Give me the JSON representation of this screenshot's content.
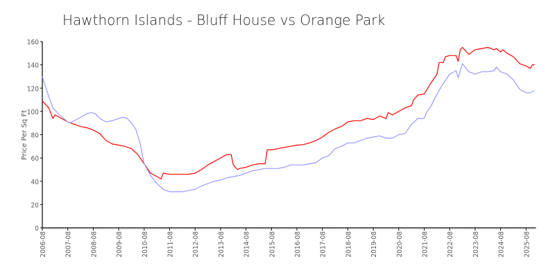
{
  "chart_data": {
    "type": "line",
    "title": "Hawthorn Islands - Bluff House vs Orange Park",
    "xlabel": "",
    "ylabel": "Price Per Sq Ft",
    "ylim": [
      0,
      160
    ],
    "yticks": [
      0,
      20,
      40,
      60,
      80,
      100,
      120,
      140,
      160
    ],
    "xlim": [
      "2006-08",
      "2025-12"
    ],
    "xticks": [
      "2006-08",
      "2007-08",
      "2008-08",
      "2009-08",
      "2010-08",
      "2011-08",
      "2012-08",
      "2013-08",
      "2014-08",
      "2015-08",
      "2016-08",
      "2017-08",
      "2018-08",
      "2019-08",
      "2020-08",
      "2021-08",
      "2022-08",
      "2023-08",
      "2024-08",
      "2025-08"
    ],
    "grid": false,
    "legend": "none",
    "series": [
      {
        "color": "#ff0000",
        "points": [
          [
            "2006-08",
            109
          ],
          [
            "2006-11",
            103
          ],
          [
            "2007-01",
            94
          ],
          [
            "2007-02",
            97
          ],
          [
            "2007-05",
            94
          ],
          [
            "2007-08",
            91
          ],
          [
            "2007-11",
            89
          ],
          [
            "2008-02",
            87
          ],
          [
            "2008-05",
            86
          ],
          [
            "2008-08",
            84
          ],
          [
            "2008-11",
            81
          ],
          [
            "2009-02",
            75
          ],
          [
            "2009-05",
            72
          ],
          [
            "2009-08",
            71
          ],
          [
            "2009-11",
            70
          ],
          [
            "2010-02",
            68
          ],
          [
            "2010-05",
            63
          ],
          [
            "2010-08",
            55
          ],
          [
            "2010-11",
            47
          ],
          [
            "2011-02",
            44
          ],
          [
            "2011-04",
            42
          ],
          [
            "2011-05",
            47
          ],
          [
            "2011-08",
            46
          ],
          [
            "2011-11",
            46
          ],
          [
            "2012-02",
            46
          ],
          [
            "2012-05",
            46
          ],
          [
            "2012-08",
            47
          ],
          [
            "2012-11",
            50
          ],
          [
            "2013-02",
            54
          ],
          [
            "2013-05",
            57
          ],
          [
            "2013-08",
            60
          ],
          [
            "2013-11",
            63
          ],
          [
            "2014-01",
            63
          ],
          [
            "2014-02",
            54
          ],
          [
            "2014-04",
            50
          ],
          [
            "2014-05",
            51
          ],
          [
            "2014-08",
            52
          ],
          [
            "2014-11",
            54
          ],
          [
            "2015-02",
            55
          ],
          [
            "2015-05",
            55
          ],
          [
            "2015-06",
            67
          ],
          [
            "2015-08",
            67
          ],
          [
            "2015-11",
            68
          ],
          [
            "2016-02",
            69
          ],
          [
            "2016-05",
            70
          ],
          [
            "2016-08",
            71
          ],
          [
            "2016-11",
            71.5
          ],
          [
            "2017-02",
            73
          ],
          [
            "2017-05",
            75
          ],
          [
            "2017-08",
            78
          ],
          [
            "2017-11",
            82
          ],
          [
            "2018-02",
            85
          ],
          [
            "2018-05",
            87
          ],
          [
            "2018-08",
            91
          ],
          [
            "2018-11",
            92
          ],
          [
            "2019-02",
            92
          ],
          [
            "2019-05",
            94
          ],
          [
            "2019-08",
            93
          ],
          [
            "2019-11",
            96
          ],
          [
            "2020-02",
            94
          ],
          [
            "2020-03",
            99
          ],
          [
            "2020-05",
            97
          ],
          [
            "2020-08",
            100
          ],
          [
            "2020-11",
            103
          ],
          [
            "2021-02",
            105
          ],
          [
            "2021-03",
            110
          ],
          [
            "2021-05",
            114
          ],
          [
            "2021-08",
            115
          ],
          [
            "2021-11",
            124
          ],
          [
            "2022-02",
            132
          ],
          [
            "2022-03",
            142
          ],
          [
            "2022-05",
            142
          ],
          [
            "2022-06",
            147
          ],
          [
            "2022-08",
            148
          ],
          [
            "2022-11",
            148
          ],
          [
            "2022-12",
            143
          ],
          [
            "2023-01",
            153
          ],
          [
            "2023-02",
            155
          ],
          [
            "2023-05",
            149
          ],
          [
            "2023-08",
            153
          ],
          [
            "2023-11",
            154
          ],
          [
            "2024-02",
            155
          ],
          [
            "2024-05",
            153
          ],
          [
            "2024-06",
            154
          ],
          [
            "2024-08",
            151
          ],
          [
            "2024-09",
            153
          ],
          [
            "2024-11",
            150
          ],
          [
            "2025-02",
            147
          ],
          [
            "2025-05",
            141
          ],
          [
            "2025-08",
            139
          ],
          [
            "2025-10",
            137
          ],
          [
            "2025-11",
            140
          ],
          [
            "2025-12",
            140
          ]
        ]
      },
      {
        "color": "#9999ff",
        "points": [
          [
            "2006-08",
            130
          ],
          [
            "2006-09",
            124
          ],
          [
            "2006-11",
            113
          ],
          [
            "2007-01",
            103
          ],
          [
            "2007-04",
            97
          ],
          [
            "2007-08",
            91
          ],
          [
            "2007-09",
            90
          ],
          [
            "2008-01",
            94
          ],
          [
            "2008-05",
            98
          ],
          [
            "2008-07",
            99
          ],
          [
            "2008-09",
            98
          ],
          [
            "2008-11",
            94
          ],
          [
            "2009-02",
            91
          ],
          [
            "2009-05",
            92
          ],
          [
            "2009-08",
            94
          ],
          [
            "2009-10",
            95
          ],
          [
            "2009-12",
            94
          ],
          [
            "2010-02",
            90
          ],
          [
            "2010-04",
            85
          ],
          [
            "2010-06",
            73
          ],
          [
            "2010-08",
            55
          ],
          [
            "2010-11",
            45
          ],
          [
            "2011-02",
            38
          ],
          [
            "2011-05",
            33
          ],
          [
            "2011-08",
            31
          ],
          [
            "2011-11",
            31
          ],
          [
            "2012-02",
            31
          ],
          [
            "2012-05",
            32
          ],
          [
            "2012-08",
            33
          ],
          [
            "2012-11",
            36
          ],
          [
            "2013-02",
            38
          ],
          [
            "2013-05",
            40
          ],
          [
            "2013-08",
            41
          ],
          [
            "2013-11",
            43
          ],
          [
            "2014-02",
            44
          ],
          [
            "2014-05",
            45
          ],
          [
            "2014-08",
            47
          ],
          [
            "2014-11",
            49
          ],
          [
            "2015-02",
            50
          ],
          [
            "2015-05",
            51
          ],
          [
            "2015-08",
            51
          ],
          [
            "2015-11",
            51
          ],
          [
            "2016-02",
            52
          ],
          [
            "2016-05",
            54
          ],
          [
            "2016-08",
            54
          ],
          [
            "2016-11",
            54
          ],
          [
            "2017-02",
            55
          ],
          [
            "2017-05",
            56
          ],
          [
            "2017-08",
            60
          ],
          [
            "2017-11",
            62
          ],
          [
            "2018-02",
            68
          ],
          [
            "2018-05",
            70
          ],
          [
            "2018-08",
            73
          ],
          [
            "2018-11",
            73
          ],
          [
            "2019-02",
            75
          ],
          [
            "2019-05",
            77
          ],
          [
            "2019-08",
            78
          ],
          [
            "2019-11",
            79
          ],
          [
            "2020-02",
            77
          ],
          [
            "2020-05",
            77
          ],
          [
            "2020-08",
            80
          ],
          [
            "2020-11",
            81
          ],
          [
            "2021-02",
            89
          ],
          [
            "2021-05",
            94
          ],
          [
            "2021-08",
            94
          ],
          [
            "2021-09",
            99
          ],
          [
            "2021-11",
            104
          ],
          [
            "2022-02",
            115
          ],
          [
            "2022-05",
            124
          ],
          [
            "2022-08",
            132
          ],
          [
            "2022-11",
            135
          ],
          [
            "2022-12",
            129
          ],
          [
            "2023-02",
            141
          ],
          [
            "2023-05",
            134
          ],
          [
            "2023-08",
            132
          ],
          [
            "2023-11",
            134
          ],
          [
            "2024-02",
            134
          ],
          [
            "2024-05",
            135
          ],
          [
            "2024-06",
            138
          ],
          [
            "2024-08",
            134
          ],
          [
            "2024-11",
            132
          ],
          [
            "2025-02",
            127
          ],
          [
            "2025-05",
            119
          ],
          [
            "2025-08",
            116
          ],
          [
            "2025-10",
            116
          ],
          [
            "2025-12",
            118
          ]
        ]
      }
    ]
  }
}
